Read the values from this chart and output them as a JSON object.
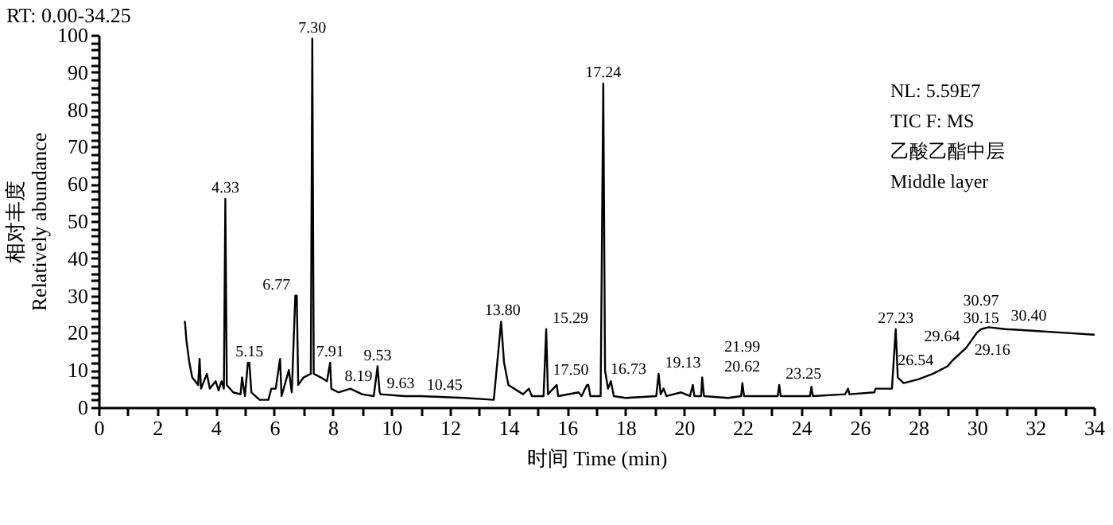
{
  "chart_data": {
    "type": "line",
    "title": "RT: 0.00-34.25",
    "xlabel": "时间 Time (min)",
    "ylabel": "相对丰度\nRelatively abundance",
    "xlim": [
      0,
      34
    ],
    "ylim": [
      0,
      100
    ],
    "xticks": [
      0,
      {
        "value": 1,
        "label": null
      },
      2,
      {
        "value": 3,
        "label": null
      },
      4,
      {
        "value": 5,
        "label": null
      },
      6,
      {
        "value": 7,
        "label": null
      },
      8,
      {
        "value": 9,
        "label": null
      },
      10,
      {
        "value": 11,
        "label": null
      },
      12,
      {
        "value": 13,
        "label": null
      },
      14,
      {
        "value": 15,
        "label": null
      },
      16,
      {
        "value": 17,
        "label": null
      },
      18,
      {
        "value": 19,
        "label": null
      },
      20,
      {
        "value": 21,
        "label": null
      },
      22,
      {
        "value": 23,
        "label": null
      },
      24,
      {
        "value": 25,
        "label": null
      },
      26,
      {
        "value": 27,
        "label": null
      },
      28,
      {
        "value": 29,
        "label": null
      },
      30,
      {
        "value": 31,
        "label": null
      },
      32,
      {
        "value": 33,
        "label": null
      },
      34
    ],
    "yticks": [
      0,
      {
        "value": 2,
        "label": null
      },
      {
        "value": 4,
        "label": null
      },
      {
        "value": 6,
        "label": null
      },
      {
        "value": 8,
        "label": null
      },
      10,
      {
        "value": 12,
        "label": null
      },
      {
        "value": 14,
        "label": null
      },
      {
        "value": 16,
        "label": null
      },
      {
        "value": 18,
        "label": null
      },
      20,
      {
        "value": 22,
        "label": null
      },
      {
        "value": 24,
        "label": null
      },
      {
        "value": 26,
        "label": null
      },
      {
        "value": 28,
        "label": null
      },
      30,
      {
        "value": 32,
        "label": null
      },
      {
        "value": 34,
        "label": null
      },
      {
        "value": 36,
        "label": null
      },
      {
        "value": 38,
        "label": null
      },
      40,
      {
        "value": 42,
        "label": null
      },
      {
        "value": 44,
        "label": null
      },
      {
        "value": 46,
        "label": null
      },
      {
        "value": 48,
        "label": null
      },
      50,
      {
        "value": 52,
        "label": null
      },
      {
        "value": 54,
        "label": null
      },
      {
        "value": 56,
        "label": null
      },
      {
        "value": 58,
        "label": null
      },
      60,
      {
        "value": 62,
        "label": null
      },
      {
        "value": 64,
        "label": null
      },
      {
        "value": 66,
        "label": null
      },
      {
        "value": 68,
        "label": null
      },
      70,
      {
        "value": 72,
        "label": null
      },
      {
        "value": 74,
        "label": null
      },
      {
        "value": 76,
        "label": null
      },
      {
        "value": 78,
        "label": null
      },
      80,
      {
        "value": 82,
        "label": null
      },
      {
        "value": 84,
        "label": null
      },
      {
        "value": 86,
        "label": null
      },
      {
        "value": 88,
        "label": null
      },
      90,
      {
        "value": 92,
        "label": null
      },
      {
        "value": 94,
        "label": null
      },
      {
        "value": 96,
        "label": null
      },
      {
        "value": 98,
        "label": null
      },
      100
    ],
    "grid": false,
    "marker": "none",
    "line_style": "solid",
    "series": [
      {
        "color": "#000000",
        "x": [
          2.95,
          3.0,
          3.1,
          3.2,
          3.4,
          3.45,
          3.5,
          3.7,
          3.8,
          4.0,
          4.1,
          4.2,
          4.28,
          4.33,
          4.38,
          4.6,
          4.85,
          4.9,
          5.0,
          5.1,
          5.15,
          5.22,
          5.5,
          5.8,
          5.9,
          6.05,
          6.2,
          6.25,
          6.5,
          6.6,
          6.72,
          6.77,
          6.82,
          7.0,
          7.25,
          7.3,
          7.35,
          7.6,
          7.8,
          7.91,
          7.95,
          8.19,
          8.6,
          9.0,
          9.4,
          9.53,
          9.6,
          9.63,
          10.45,
          11.0,
          12.5,
          13.5,
          13.75,
          13.85,
          14.0,
          14.5,
          14.7,
          14.8,
          15.2,
          15.29,
          15.35,
          15.65,
          15.7,
          16.4,
          16.5,
          16.68,
          16.73,
          16.8,
          17.15,
          17.24,
          17.3,
          17.4,
          17.5,
          17.6,
          18.0,
          19.05,
          19.13,
          19.2,
          19.3,
          19.4,
          19.9,
          20.2,
          20.3,
          20.35,
          20.58,
          20.62,
          20.68,
          21.5,
          21.95,
          21.99,
          22.05,
          23.2,
          23.25,
          23.3,
          24.3,
          24.35,
          24.4,
          25.5,
          25.6,
          25.65,
          26.5,
          26.54,
          27.1,
          27.23,
          27.3,
          27.5,
          28.0,
          28.5,
          29.0,
          29.16,
          29.64,
          30.0,
          30.15,
          30.4,
          30.97,
          32.0,
          33.0,
          34.0
        ],
        "values": [
          23,
          18,
          12,
          8,
          6,
          13,
          5,
          9,
          5,
          7,
          4.5,
          7,
          5,
          56,
          6,
          4,
          3.5,
          8,
          3,
          12,
          12,
          4,
          2,
          2,
          5,
          5,
          13,
          3,
          10,
          4,
          30,
          30,
          6,
          8,
          9,
          99,
          9,
          8,
          7,
          12,
          5,
          4,
          5,
          3.5,
          3,
          11,
          4,
          3.5,
          3,
          3,
          2.5,
          2,
          23,
          12,
          6,
          3.5,
          5,
          3,
          3,
          21,
          3.5,
          6,
          3,
          4,
          3,
          6,
          6,
          3,
          3,
          87,
          10,
          5,
          7,
          3,
          2.5,
          3,
          9,
          3.5,
          5,
          3,
          4,
          3,
          6,
          3,
          3,
          8,
          3,
          2.5,
          3,
          6.5,
          3,
          3,
          6,
          3,
          3,
          5.5,
          3,
          3.5,
          5,
          3.5,
          4,
          5,
          5,
          21,
          8,
          6.5,
          7.5,
          9,
          11,
          12.5,
          16,
          20,
          21,
          21.5,
          21,
          20.5,
          20,
          19.5
        ]
      }
    ],
    "annotations": [
      {
        "text": "4.33",
        "x": 4.33,
        "y": 56
      },
      {
        "text": "5.15",
        "x": 5.15,
        "y": 12
      },
      {
        "text": "6.77",
        "x": 6.77,
        "y": 30
      },
      {
        "text": "7.30",
        "x": 7.3,
        "y": 99
      },
      {
        "text": "7.91",
        "x": 7.91,
        "y": 12
      },
      {
        "text": "8.19",
        "x": 8.19,
        "y": 4
      },
      {
        "text": "9.53",
        "x": 9.53,
        "y": 11
      },
      {
        "text": "9.63",
        "x": 9.63,
        "y": 3.5
      },
      {
        "text": "10.45",
        "x": 10.45,
        "y": 3
      },
      {
        "text": "13.80",
        "x": 13.8,
        "y": 23
      },
      {
        "text": "15.29",
        "x": 15.29,
        "y": 21
      },
      {
        "text": "16.73",
        "x": 16.73,
        "y": 6
      },
      {
        "text": "17.24",
        "x": 17.24,
        "y": 87
      },
      {
        "text": "17.50",
        "x": 17.5,
        "y": 7
      },
      {
        "text": "19.13",
        "x": 19.13,
        "y": 9
      },
      {
        "text": "20.62",
        "x": 20.62,
        "y": 8
      },
      {
        "text": "21.99",
        "x": 21.99,
        "y": 6.5
      },
      {
        "text": "23.25",
        "x": 23.25,
        "y": 6
      },
      {
        "text": "26.54",
        "x": 26.54,
        "y": 5
      },
      {
        "text": "27.23",
        "x": 27.23,
        "y": 21
      },
      {
        "text": "29.16",
        "x": 29.16,
        "y": 12.5
      },
      {
        "text": "29.64",
        "x": 29.64,
        "y": 16
      },
      {
        "text": "30.15",
        "x": 30.15,
        "y": 21
      },
      {
        "text": "30.40",
        "x": 30.4,
        "y": 21.5
      },
      {
        "text": "30.97",
        "x": 30.97,
        "y": 21
      },
      "NL: 5.59E7",
      "TIC F: MS",
      "乙酸乙酯中层",
      "Middle layer"
    ]
  }
}
